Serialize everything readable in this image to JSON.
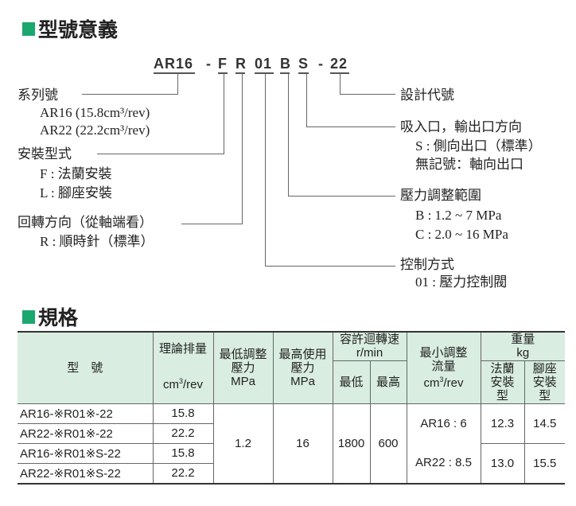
{
  "section1": {
    "title": "型號意義",
    "accent_color": "#1aa86e"
  },
  "code": {
    "series": "AR16",
    "dash1": "-",
    "mount": "F",
    "rotation": "R",
    "control": "01",
    "pressure": "B",
    "port": "S",
    "dash2": "-",
    "design": "22"
  },
  "left_labels": {
    "series": {
      "title": "系列號",
      "items": [
        "AR16 (15.8cm³/rev)",
        "AR22 (22.2cm³/rev)"
      ]
    },
    "mount": {
      "title": "安裝型式",
      "items": [
        "F : 法蘭安裝",
        "L : 腳座安裝"
      ]
    },
    "rotation": {
      "title": "回轉方向（從軸端看）",
      "items": [
        "R : 順時針（標準）"
      ]
    }
  },
  "right_labels": {
    "design": {
      "title": "設計代號"
    },
    "port": {
      "title": "吸入口，輸出口方向",
      "items": [
        "S : 側向出口（標準）",
        "無記號：軸向出口"
      ]
    },
    "pressure": {
      "title": "壓力調整範圍",
      "items": [
        "B : 1.2 ~ 7 MPa",
        "C : 2.0 ~ 16 MPa"
      ]
    },
    "control": {
      "title": "控制方式",
      "items": [
        "01 : 壓力控制閥"
      ]
    }
  },
  "section2": {
    "title": "規格",
    "accent_color": "#1aa86e",
    "header_bg": "#d9ede0"
  },
  "table": {
    "headers": {
      "model": "型　號",
      "displacement": "理論排量",
      "displacement_unit_a": "cm",
      "displacement_unit_sup": "3",
      "displacement_unit_b": "/rev",
      "min_pressure": "最低調整壓力",
      "min_pressure_unit": "MPa",
      "max_pressure": "最高使用壓力",
      "max_pressure_unit": "MPa",
      "speed": "容許迴轉速",
      "speed_unit": "r/min",
      "speed_min": "最低",
      "speed_max": "最高",
      "min_flow": "最小調整流量",
      "min_flow_unit_a": "cm",
      "min_flow_unit_sup": "3",
      "min_flow_unit_b": "/rev",
      "weight": "重量",
      "weight_unit": "kg",
      "weight_flange": "法蘭安裝型",
      "weight_foot": "腳座安裝型"
    },
    "rows": [
      {
        "model": "AR16-※R01※-22",
        "displacement": "15.8"
      },
      {
        "model": "AR22-※R01※-22",
        "displacement": "22.2"
      },
      {
        "model": "AR16-※R01※S-22",
        "displacement": "15.8"
      },
      {
        "model": "AR22-※R01※S-22",
        "displacement": "22.2"
      }
    ],
    "min_pressure": "1.2",
    "max_pressure": "16",
    "speed_min": "1800",
    "speed_max": "600",
    "min_flow": [
      "AR16 : 6",
      "AR22 : 8.5"
    ],
    "weight": [
      {
        "flange": "12.3",
        "foot": "14.5"
      },
      {
        "flange": "13.0",
        "foot": "15.5"
      }
    ]
  }
}
